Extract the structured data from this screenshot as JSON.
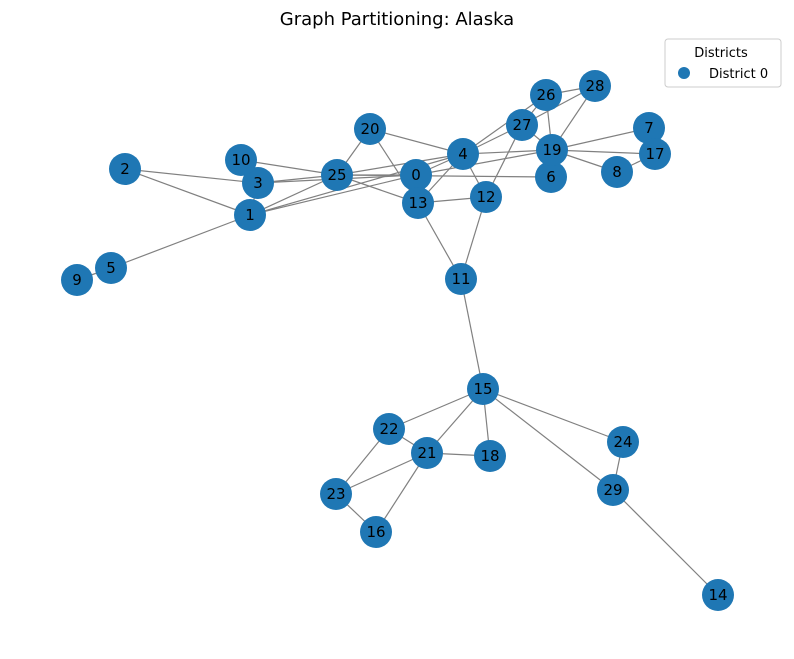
{
  "title": "Graph Partitioning: Alaska",
  "legend": {
    "title": "Districts",
    "entries": [
      {
        "label": "District 0",
        "color": "#1f77b4"
      }
    ]
  },
  "colors": {
    "node": "#1f77b4",
    "edge": "#808080"
  },
  "nodes": [
    "0",
    "1",
    "2",
    "3",
    "4",
    "5",
    "6",
    "7",
    "8",
    "9",
    "10",
    "11",
    "12",
    "13",
    "14",
    "15",
    "16",
    "17",
    "18",
    "19",
    "20",
    "21",
    "22",
    "23",
    "24",
    "25",
    "26",
    "27",
    "28",
    "29"
  ],
  "edges": [
    [
      "2",
      "3"
    ],
    [
      "2",
      "1"
    ],
    [
      "10",
      "3"
    ],
    [
      "10",
      "25"
    ],
    [
      "3",
      "1"
    ],
    [
      "3",
      "25"
    ],
    [
      "3",
      "0"
    ],
    [
      "1",
      "25"
    ],
    [
      "1",
      "0"
    ],
    [
      "1",
      "4"
    ],
    [
      "1",
      "5"
    ],
    [
      "5",
      "9"
    ],
    [
      "20",
      "25"
    ],
    [
      "20",
      "4"
    ],
    [
      "20",
      "13"
    ],
    [
      "25",
      "0"
    ],
    [
      "25",
      "13"
    ],
    [
      "25",
      "4"
    ],
    [
      "25",
      "6"
    ],
    [
      "0",
      "4"
    ],
    [
      "0",
      "19"
    ],
    [
      "4",
      "13"
    ],
    [
      "4",
      "12"
    ],
    [
      "4",
      "19"
    ],
    [
      "4",
      "27"
    ],
    [
      "4",
      "26"
    ],
    [
      "13",
      "12"
    ],
    [
      "13",
      "11"
    ],
    [
      "12",
      "27"
    ],
    [
      "12",
      "11"
    ],
    [
      "27",
      "26"
    ],
    [
      "27",
      "28"
    ],
    [
      "27",
      "19"
    ],
    [
      "26",
      "28"
    ],
    [
      "26",
      "19"
    ],
    [
      "28",
      "19"
    ],
    [
      "19",
      "7"
    ],
    [
      "19",
      "17"
    ],
    [
      "19",
      "8"
    ],
    [
      "19",
      "6"
    ],
    [
      "8",
      "17"
    ],
    [
      "11",
      "15"
    ],
    [
      "15",
      "22"
    ],
    [
      "15",
      "21"
    ],
    [
      "15",
      "18"
    ],
    [
      "15",
      "24"
    ],
    [
      "15",
      "29"
    ],
    [
      "22",
      "21"
    ],
    [
      "22",
      "23"
    ],
    [
      "21",
      "18"
    ],
    [
      "21",
      "23"
    ],
    [
      "21",
      "16"
    ],
    [
      "23",
      "16"
    ],
    [
      "24",
      "29"
    ],
    [
      "29",
      "14"
    ]
  ]
}
